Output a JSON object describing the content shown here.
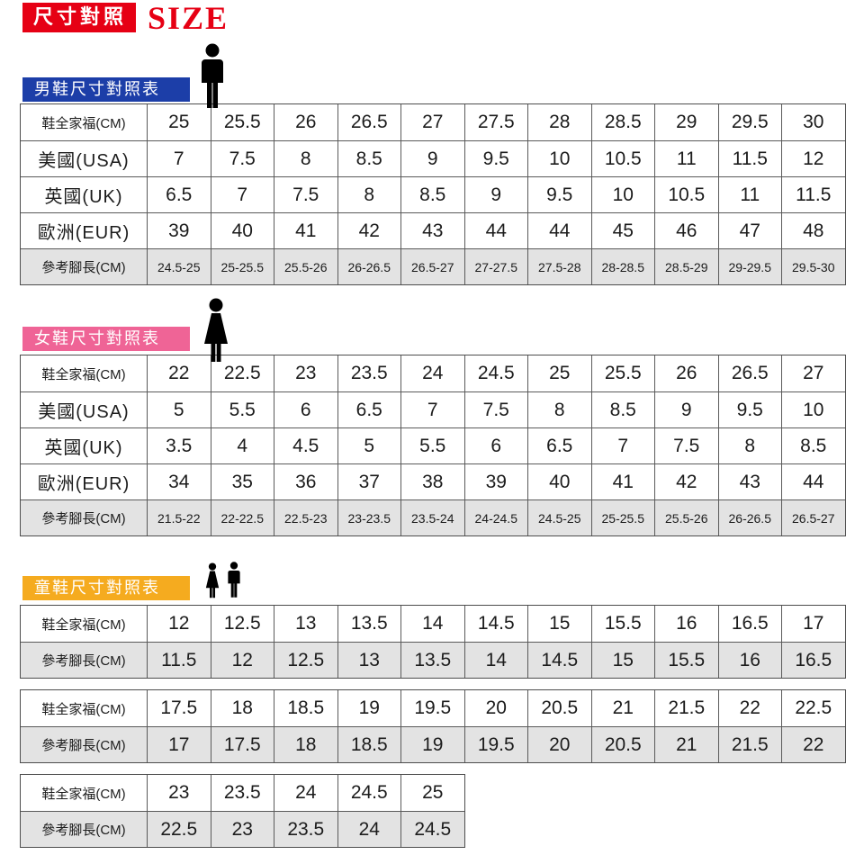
{
  "header": {
    "badge": "尺寸對照",
    "size_word": "SIZE"
  },
  "colors": {
    "accent_red": "#e60014",
    "men_blue": "#1c3ea8",
    "women_pink": "#ef6496",
    "kids_orange": "#f5ab1f",
    "reference_row_gray": "#e3e3e3"
  },
  "sections": {
    "men": {
      "title": "男鞋尺寸對照表",
      "icon": "man-icon",
      "table": {
        "rows": [
          {
            "label": "鞋全家福(CM)",
            "values": [
              "25",
              "25.5",
              "26",
              "26.5",
              "27",
              "27.5",
              "28",
              "28.5",
              "29",
              "29.5",
              "30"
            ]
          },
          {
            "label": "美國(USA)",
            "values": [
              "7",
              "7.5",
              "8",
              "8.5",
              "9",
              "9.5",
              "10",
              "10.5",
              "11",
              "11.5",
              "12"
            ]
          },
          {
            "label": "英國(UK)",
            "values": [
              "6.5",
              "7",
              "7.5",
              "8",
              "8.5",
              "9",
              "9.5",
              "10",
              "10.5",
              "11",
              "11.5"
            ]
          },
          {
            "label": "歐洲(EUR)",
            "values": [
              "39",
              "40",
              "41",
              "42",
              "43",
              "44",
              "44",
              "45",
              "46",
              "47",
              "48"
            ]
          },
          {
            "label": "參考腳長(CM)",
            "values": [
              "24.5-25",
              "25-25.5",
              "25.5-26",
              "26-26.5",
              "26.5-27",
              "27-27.5",
              "27.5-28",
              "28-28.5",
              "28.5-29",
              "29-29.5",
              "29.5-30"
            ]
          }
        ]
      }
    },
    "women": {
      "title": "女鞋尺寸對照表",
      "icon": "woman-icon",
      "table": {
        "rows": [
          {
            "label": "鞋全家福(CM)",
            "values": [
              "22",
              "22.5",
              "23",
              "23.5",
              "24",
              "24.5",
              "25",
              "25.5",
              "26",
              "26.5",
              "27"
            ]
          },
          {
            "label": "美國(USA)",
            "values": [
              "5",
              "5.5",
              "6",
              "6.5",
              "7",
              "7.5",
              "8",
              "8.5",
              "9",
              "9.5",
              "10"
            ]
          },
          {
            "label": "英國(UK)",
            "values": [
              "3.5",
              "4",
              "4.5",
              "5",
              "5.5",
              "6",
              "6.5",
              "7",
              "7.5",
              "8",
              "8.5"
            ]
          },
          {
            "label": "歐洲(EUR)",
            "values": [
              "34",
              "35",
              "36",
              "37",
              "38",
              "39",
              "40",
              "41",
              "42",
              "43",
              "44"
            ]
          },
          {
            "label": "參考腳長(CM)",
            "values": [
              "21.5-22",
              "22-22.5",
              "22.5-23",
              "23-23.5",
              "23.5-24",
              "24-24.5",
              "24.5-25",
              "25-25.5",
              "25.5-26",
              "26-26.5",
              "26.5-27"
            ]
          }
        ]
      }
    },
    "kids": {
      "title": "童鞋尺寸對照表",
      "icon": "girl-and-boy-icon",
      "tables": [
        {
          "rows": [
            {
              "label": "鞋全家福(CM)",
              "values": [
                "12",
                "12.5",
                "13",
                "13.5",
                "14",
                "14.5",
                "15",
                "15.5",
                "16",
                "16.5",
                "17"
              ]
            },
            {
              "label": "參考腳長(CM)",
              "values": [
                "11.5",
                "12",
                "12.5",
                "13",
                "13.5",
                "14",
                "14.5",
                "15",
                "15.5",
                "16",
                "16.5"
              ]
            }
          ]
        },
        {
          "rows": [
            {
              "label": "鞋全家福(CM)",
              "values": [
                "17.5",
                "18",
                "18.5",
                "19",
                "19.5",
                "20",
                "20.5",
                "21",
                "21.5",
                "22",
                "22.5"
              ]
            },
            {
              "label": "參考腳長(CM)",
              "values": [
                "17",
                "17.5",
                "18",
                "18.5",
                "19",
                "19.5",
                "20",
                "20.5",
                "21",
                "21.5",
                "22"
              ]
            }
          ]
        },
        {
          "rows": [
            {
              "label": "鞋全家福(CM)",
              "values": [
                "23",
                "23.5",
                "24",
                "24.5",
                "25"
              ]
            },
            {
              "label": "參考腳長(CM)",
              "values": [
                "22.5",
                "23",
                "23.5",
                "24",
                "24.5"
              ]
            }
          ]
        }
      ]
    }
  }
}
